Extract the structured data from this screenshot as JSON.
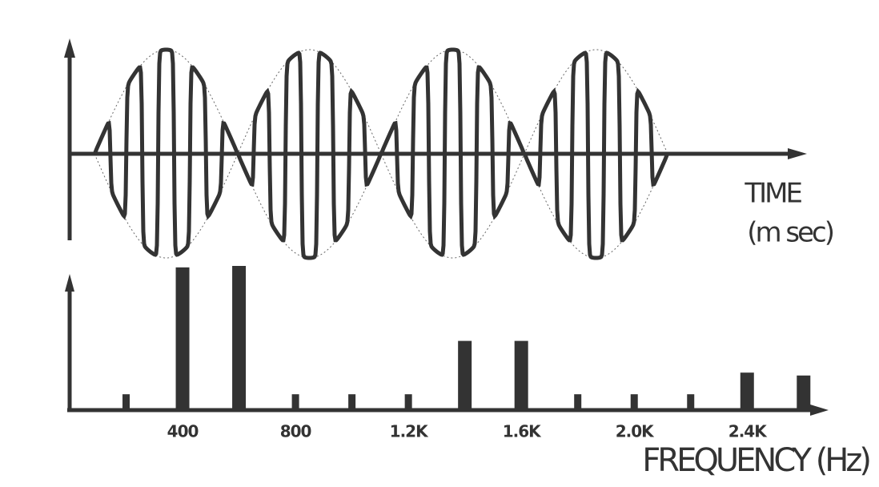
{
  "waveform": {
    "axis_label": "TIME",
    "axis_unit": "(m sec)"
  },
  "chart_data": {
    "type": "bar",
    "xlabel": "FREQUENCY (Hz)",
    "x": [
      200,
      400,
      600,
      800,
      1000,
      1200,
      1400,
      1600,
      1800,
      2000,
      2200,
      2400,
      2600
    ],
    "values": [
      0.11,
      0.99,
      1.0,
      0.11,
      0.11,
      0.11,
      0.48,
      0.48,
      0.11,
      0.11,
      0.11,
      0.26,
      0.24
    ],
    "color": "#333333",
    "xlim": [
      0,
      2680
    ],
    "ylim": [
      0,
      1
    ],
    "xticks": [
      400,
      800,
      {
        "value": 1200,
        "label": "1.2K"
      },
      {
        "value": 1600,
        "label": "1.6K"
      },
      {
        "value": 2000,
        "label": "2.0K"
      },
      {
        "value": 2400,
        "label": "2.4K"
      }
    ]
  }
}
